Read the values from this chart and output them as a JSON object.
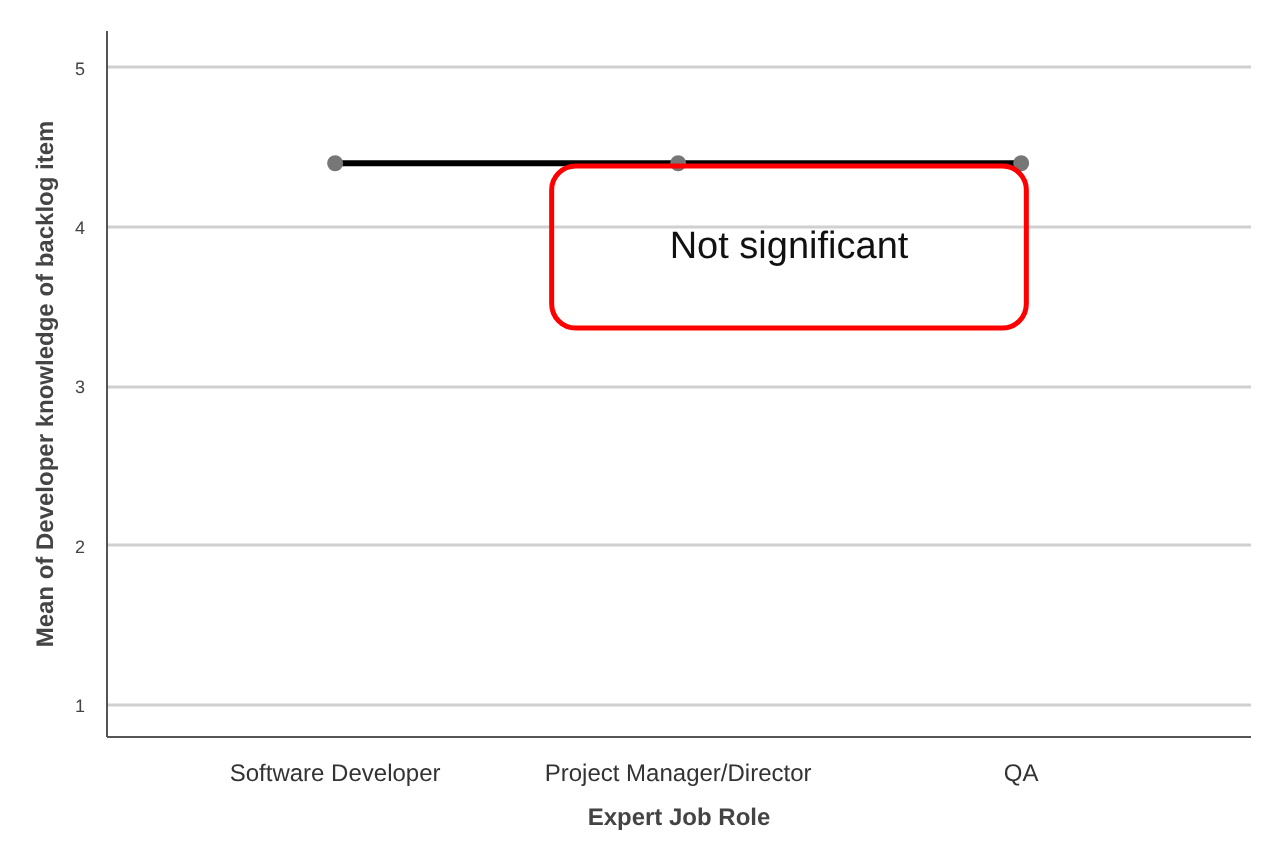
{
  "chart_data": {
    "type": "line",
    "xlabel": "Expert Job Role",
    "ylabel": "Mean of Developer knowledge of backlog item",
    "categories": [
      "Software Developer",
      "Project Manager/Director",
      "QA"
    ],
    "series": [
      {
        "color": "#000000",
        "values": [
          4.4,
          4.4,
          4.4
        ]
      }
    ],
    "ylim": [
      0.8,
      5.23
    ],
    "yticks": [
      1,
      2,
      3,
      4,
      5
    ],
    "grid": "y",
    "marker": "circle",
    "line_style": "solid",
    "annotations": [
      "Not significant"
    ]
  }
}
